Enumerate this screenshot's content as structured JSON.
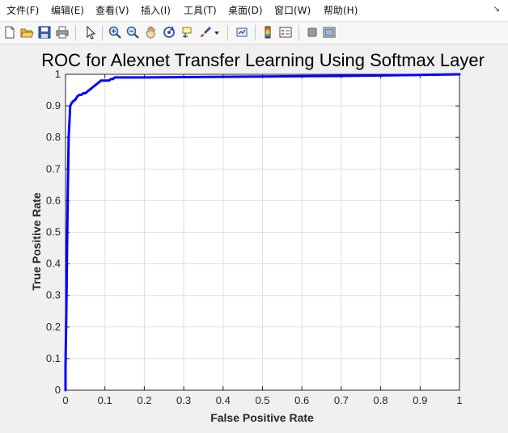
{
  "menu": {
    "items": [
      "文件(F)",
      "编辑(E)",
      "查看(V)",
      "插入(I)",
      "工具(T)",
      "桌面(D)",
      "窗口(W)",
      "帮助(H)"
    ]
  },
  "toolbar": {
    "icons": [
      "new-figure-icon",
      "open-file-icon",
      "save-icon",
      "print-icon",
      "pointer-icon",
      "zoom-in-icon",
      "zoom-out-icon",
      "pan-icon",
      "rotate-3d-icon",
      "data-cursor-icon",
      "brush-icon",
      "brush-dropdown-icon",
      "link-plot-icon",
      "colorbar-icon",
      "legend-icon",
      "hide-plot-tools-icon",
      "show-plot-tools-icon"
    ]
  },
  "colors": {
    "line": "#0000ff",
    "grid": "#dfdfdf",
    "axes": "#262626",
    "plot_bg": "#ffffff",
    "figure_bg": "#f0f0f0"
  },
  "chart_data": {
    "type": "line",
    "title": "ROC for Alexnet Transfer Learning Using Softmax Layer",
    "xlabel": "False Positive Rate",
    "ylabel": "True Positive Rate",
    "xlim": [
      0,
      1
    ],
    "ylim": [
      0,
      1
    ],
    "grid": true,
    "xticks": [
      "0",
      "0.1",
      "0.2",
      "0.3",
      "0.4",
      "0.5",
      "0.6",
      "0.7",
      "0.8",
      "0.9",
      "1"
    ],
    "yticks": [
      "0",
      "0.1",
      "0.2",
      "0.3",
      "0.4",
      "0.5",
      "0.6",
      "0.7",
      "0.8",
      "0.9",
      "1"
    ],
    "series": [
      {
        "x": [
          0,
          0,
          0.002,
          0.004,
          0.006,
          0.008,
          0.012,
          0.016,
          0.02,
          0.025,
          0.03,
          0.035,
          0.04,
          0.045,
          0.05,
          0.055,
          0.06,
          0.065,
          0.07,
          0.075,
          0.08,
          0.085,
          0.09,
          0.1,
          0.105,
          0.11,
          0.115,
          0.12,
          0.125,
          0.13,
          0.2,
          0.3,
          0.5,
          0.7,
          0.9,
          1.0
        ],
        "y": [
          0,
          0.08,
          0.25,
          0.45,
          0.65,
          0.8,
          0.9,
          0.91,
          0.915,
          0.92,
          0.93,
          0.935,
          0.935,
          0.94,
          0.94,
          0.945,
          0.95,
          0.955,
          0.96,
          0.965,
          0.97,
          0.975,
          0.98,
          0.98,
          0.98,
          0.98,
          0.985,
          0.985,
          0.99,
          0.99,
          0.99,
          0.991,
          0.993,
          0.995,
          0.998,
          1.0
        ]
      }
    ]
  }
}
